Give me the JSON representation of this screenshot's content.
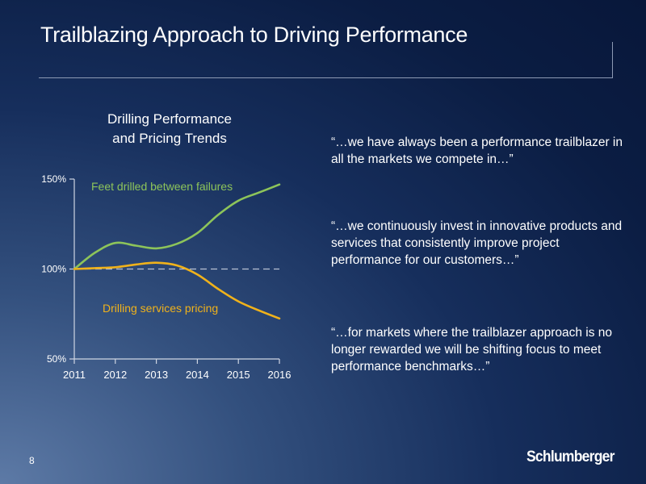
{
  "slide": {
    "title": "Trailblazing Approach to Driving Performance",
    "page_number": "8",
    "logo_text": "Schlumberger"
  },
  "chart_data": {
    "type": "line",
    "title_lines": [
      "Drilling Performance",
      "and Pricing Trends"
    ],
    "x": [
      2011,
      2012,
      2013,
      2014,
      2015,
      2016
    ],
    "x_tick_labels": [
      "2011",
      "2012",
      "2013",
      "2014",
      "2015",
      "2016"
    ],
    "y_ticks": [
      50,
      100,
      150
    ],
    "y_tick_labels": [
      "50%",
      "100%",
      "150%"
    ],
    "ylim": [
      50,
      150
    ],
    "xlim": [
      2011,
      2016
    ],
    "baseline": {
      "value": 100,
      "style": "dashed"
    },
    "grid": false,
    "series": [
      {
        "name": "Feet drilled between failures",
        "color": "#8dc45a",
        "points": [
          [
            2011,
            100
          ],
          [
            2011.5,
            109
          ],
          [
            2012,
            114.5
          ],
          [
            2012.5,
            113
          ],
          [
            2013,
            111.5
          ],
          [
            2013.5,
            114
          ],
          [
            2014,
            120
          ],
          [
            2014.5,
            130
          ],
          [
            2015,
            138
          ],
          [
            2015.5,
            142.5
          ],
          [
            2016,
            147
          ]
        ]
      },
      {
        "name": "Drilling services pricing",
        "color": "#f0b21b",
        "points": [
          [
            2011,
            100
          ],
          [
            2011.5,
            100.5
          ],
          [
            2012,
            101
          ],
          [
            2012.5,
            102.5
          ],
          [
            2013,
            103.5
          ],
          [
            2013.5,
            102
          ],
          [
            2014,
            97
          ],
          [
            2014.5,
            89
          ],
          [
            2015,
            82
          ],
          [
            2015.5,
            77
          ],
          [
            2016,
            72.5
          ]
        ]
      }
    ]
  },
  "quotes": [
    "“…we have always been a  performance trailblazer in all the markets we compete in…”",
    "“…we continuously invest in innovative products and services that consistently improve project performance for our customers…”",
    "“…for markets where the trailblazer approach is no longer rewarded we will be shifting focus to meet performance benchmarks…”"
  ]
}
